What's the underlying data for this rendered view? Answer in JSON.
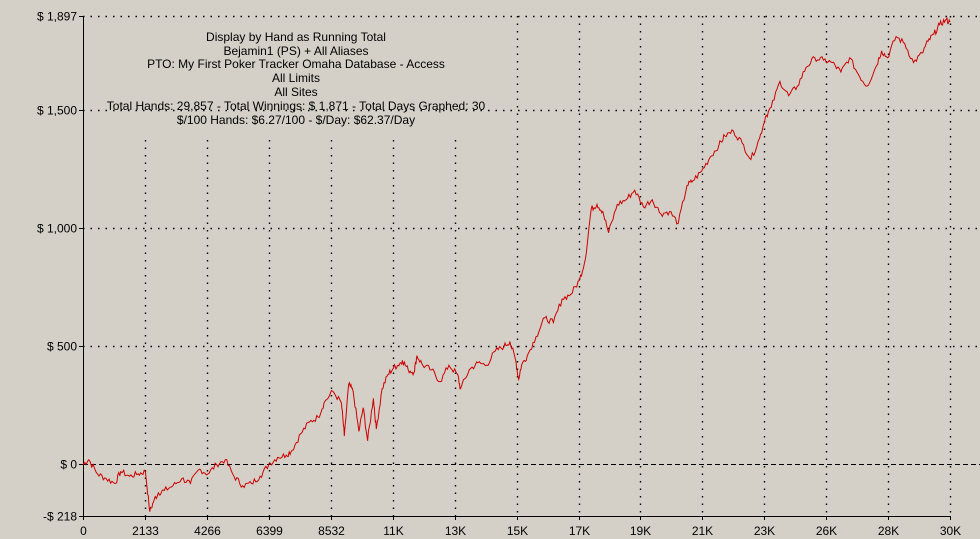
{
  "colors": {
    "background": "#d4d0c8",
    "line": "#cc0000",
    "grid": "#000000",
    "text": "#000000"
  },
  "info_lines": [
    "Display by Hand as Running Total",
    "Bejamin1 (PS) + All Aliases",
    "PTO: My First Poker Tracker Omaha Database - Access",
    "All Limits",
    "All Sites",
    "Total Hands: 29,857 - Total Winnings: $ 1,871 - Total Days Graphed: 30",
    "$/100 Hands: $6.27/100 - $/Day: $62.37/Day"
  ],
  "chart_data": {
    "type": "line",
    "title": "Display by Hand as Running Total",
    "xlabel": "",
    "ylabel": "",
    "xlim": [
      0,
      29857
    ],
    "ylim": [
      -218,
      1897
    ],
    "grid": true,
    "y_ticks": [
      {
        "value": 1897,
        "label": "$ 1,897"
      },
      {
        "value": 1500,
        "label": "$ 1,500"
      },
      {
        "value": 1000,
        "label": "$ 1,000"
      },
      {
        "value": 500,
        "label": "$ 500"
      },
      {
        "value": 0,
        "label": "$ 0"
      },
      {
        "value": -218,
        "label": "-$ 218"
      }
    ],
    "x_ticks": [
      {
        "value": 0,
        "label": "0"
      },
      {
        "value": 2133,
        "label": "2133"
      },
      {
        "value": 4266,
        "label": "4266"
      },
      {
        "value": 6399,
        "label": "6399"
      },
      {
        "value": 8532,
        "label": "8532"
      },
      {
        "value": 10665,
        "label": "11K"
      },
      {
        "value": 12798,
        "label": "13K"
      },
      {
        "value": 14931,
        "label": "15K"
      },
      {
        "value": 17064,
        "label": "17K"
      },
      {
        "value": 19197,
        "label": "19K"
      },
      {
        "value": 21330,
        "label": "21K"
      },
      {
        "value": 23463,
        "label": "23K"
      },
      {
        "value": 25596,
        "label": "26K"
      },
      {
        "value": 27729,
        "label": "28K"
      },
      {
        "value": 29862,
        "label": "30K"
      }
    ],
    "series": [
      {
        "x": [
          0,
          200,
          500,
          800,
          1100,
          1300,
          1600,
          1900,
          2150,
          2300,
          2450,
          2600,
          2800,
          3100,
          3400,
          3700,
          4000,
          4300,
          4600,
          4900,
          5200,
          5500,
          5800,
          6100,
          6400,
          6700,
          7000,
          7200,
          7500,
          7800,
          8100,
          8300,
          8600,
          8900,
          9000,
          9150,
          9300,
          9500,
          9650,
          9800,
          10000,
          10100,
          10300,
          10500,
          10700,
          10850,
          11000,
          11200,
          11400,
          11500,
          11700,
          12000,
          12300,
          12600,
          12900,
          13000,
          13300,
          13600,
          13900,
          14200,
          14500,
          14700,
          14900,
          15000,
          15100,
          15300,
          15600,
          15900,
          16200,
          16500,
          16800,
          17100,
          17300,
          17500,
          17700,
          17900,
          18100,
          18400,
          18700,
          19000,
          19300,
          19600,
          19900,
          20200,
          20500,
          20800,
          21000,
          21300,
          21600,
          21900,
          22100,
          22400,
          22700,
          23000,
          23300,
          23500,
          23700,
          24000,
          24300,
          24600,
          24900,
          25200,
          25500,
          25800,
          26100,
          26400,
          26700,
          27000,
          27300,
          27500,
          27700,
          28000,
          28300,
          28600,
          28900,
          29100,
          29300,
          29500,
          29700,
          29857
        ],
        "values": [
          0,
          20,
          -40,
          -60,
          -80,
          -30,
          -50,
          -40,
          -30,
          -200,
          -150,
          -120,
          -110,
          -90,
          -60,
          -80,
          -20,
          -40,
          0,
          20,
          -50,
          -90,
          -80,
          -50,
          0,
          30,
          40,
          60,
          130,
          180,
          200,
          260,
          310,
          260,
          120,
          340,
          310,
          140,
          240,
          100,
          280,
          150,
          320,
          380,
          410,
          420,
          440,
          400,
          390,
          460,
          420,
          400,
          350,
          420,
          380,
          320,
          400,
          430,
          420,
          480,
          500,
          520,
          440,
          360,
          420,
          460,
          540,
          620,
          600,
          700,
          720,
          780,
          870,
          1080,
          1100,
          1070,
          980,
          1100,
          1120,
          1160,
          1090,
          1120,
          1060,
          1070,
          1020,
          1180,
          1200,
          1240,
          1300,
          1350,
          1390,
          1410,
          1360,
          1290,
          1380,
          1470,
          1510,
          1620,
          1560,
          1600,
          1680,
          1720,
          1710,
          1700,
          1660,
          1720,
          1650,
          1600,
          1680,
          1750,
          1720,
          1810,
          1780,
          1700,
          1740,
          1790,
          1820,
          1860,
          1880,
          1871
        ]
      }
    ]
  }
}
